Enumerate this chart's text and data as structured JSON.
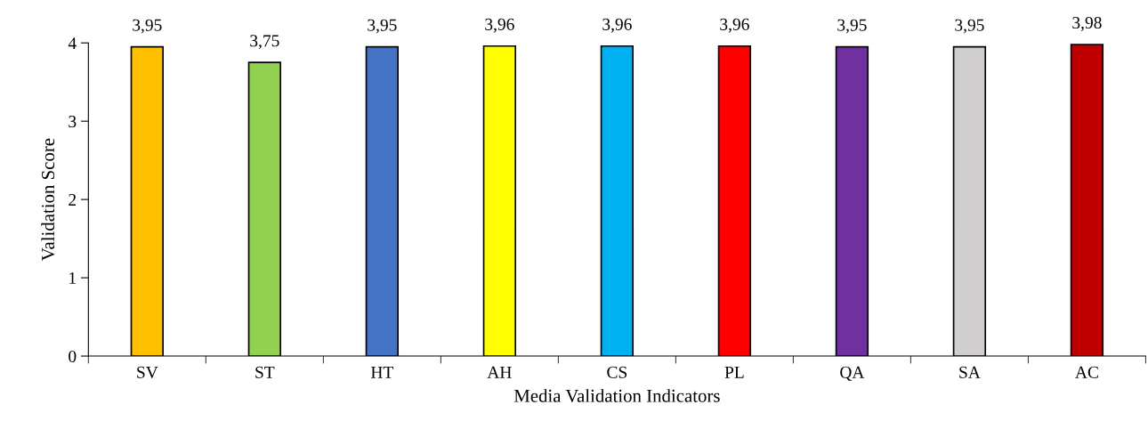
{
  "chart_data": {
    "type": "bar",
    "xlabel": "Media Validation Indicators",
    "ylabel": "Validation Score",
    "categories": [
      "SV",
      "ST",
      "HT",
      "AH",
      "CS",
      "PL",
      "QA",
      "SA",
      "AC"
    ],
    "values": [
      3.95,
      3.75,
      3.95,
      3.96,
      3.96,
      3.96,
      3.95,
      3.95,
      3.98
    ],
    "colors": [
      "#ffc000",
      "#92d050",
      "#4472c4",
      "#ffff00",
      "#00b0f0",
      "#ff0000",
      "#7030a0",
      "#d0cece",
      "#c00000"
    ],
    "value_labels": [
      "3,95",
      "3,75",
      "3,95",
      "3,96",
      "3,96",
      "3,96",
      "3,95",
      "3,95",
      "3,98"
    ],
    "ylim": [
      0,
      4
    ],
    "yticks": [
      0,
      1,
      2,
      3,
      4
    ],
    "grid": false
  }
}
